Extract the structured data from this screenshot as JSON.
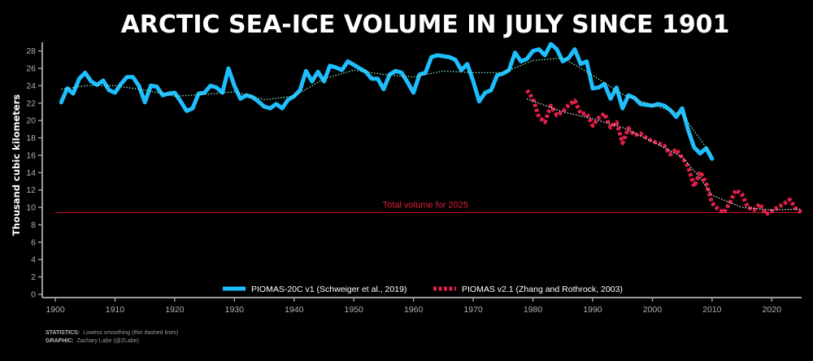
{
  "chart_data": {
    "type": "line",
    "title": "ARCTIC SEA-ICE VOLUME IN JULY SINCE 1901",
    "ylabel": "Thousand cubic kilometers",
    "xlabel": "",
    "xlim": [
      1900,
      2025
    ],
    "ylim": [
      0,
      29
    ],
    "xticks": [
      1900,
      1910,
      1920,
      1930,
      1940,
      1950,
      1960,
      1970,
      1980,
      1990,
      2000,
      2010,
      2020
    ],
    "yticks": [
      0,
      2,
      4,
      6,
      8,
      10,
      12,
      14,
      16,
      18,
      20,
      22,
      24,
      26,
      28
    ],
    "grid": false,
    "legend_position": "bottom-center",
    "reference_line": {
      "y": 9.4,
      "label": "Total volume for 2025",
      "color": "#c8102e"
    },
    "series": [
      {
        "name": "PIOMAS-20C v1 (Schweiger et al., 2019)",
        "color": "#1fbfff",
        "style": "solid",
        "x": [
          1901,
          1902,
          1903,
          1904,
          1905,
          1906,
          1907,
          1908,
          1909,
          1910,
          1911,
          1912,
          1913,
          1914,
          1915,
          1916,
          1917,
          1918,
          1919,
          1920,
          1921,
          1922,
          1923,
          1924,
          1925,
          1926,
          1927,
          1928,
          1929,
          1930,
          1931,
          1932,
          1933,
          1934,
          1935,
          1936,
          1937,
          1938,
          1939,
          1940,
          1941,
          1942,
          1943,
          1944,
          1945,
          1946,
          1947,
          1948,
          1949,
          1950,
          1951,
          1952,
          1953,
          1954,
          1955,
          1956,
          1957,
          1958,
          1959,
          1960,
          1961,
          1962,
          1963,
          1964,
          1965,
          1966,
          1967,
          1968,
          1969,
          1970,
          1971,
          1972,
          1973,
          1974,
          1975,
          1976,
          1977,
          1978,
          1979,
          1980,
          1981,
          1982,
          1983,
          1984,
          1985,
          1986,
          1987,
          1988,
          1989,
          1990,
          1991,
          1992,
          1993,
          1994,
          1995,
          1996,
          1997,
          1998,
          1999,
          2000,
          2001,
          2002,
          2003,
          2004,
          2005,
          2006,
          2007,
          2008,
          2009,
          2010
        ],
        "values": [
          22.1,
          23.7,
          23.1,
          24.8,
          25.5,
          24.5,
          24.1,
          24.6,
          23.5,
          23.2,
          24.2,
          25.0,
          25.0,
          24.0,
          22.1,
          24.0,
          23.9,
          22.9,
          23.1,
          23.2,
          22.2,
          21.1,
          21.4,
          23.1,
          23.2,
          24.0,
          23.8,
          23.2,
          26.0,
          24.0,
          22.5,
          22.9,
          22.7,
          22.2,
          21.6,
          21.4,
          21.9,
          21.4,
          22.4,
          22.8,
          23.5,
          25.7,
          24.5,
          25.6,
          24.5,
          26.3,
          26.1,
          25.8,
          26.8,
          26.4,
          26.0,
          25.6,
          24.8,
          24.8,
          23.6,
          25.3,
          25.7,
          25.5,
          24.4,
          23.2,
          25.3,
          25.5,
          27.3,
          27.5,
          27.4,
          27.3,
          27.0,
          25.8,
          26.5,
          24.5,
          22.2,
          23.2,
          23.5,
          25.2,
          25.4,
          25.8,
          27.8,
          26.8,
          27.1,
          28.0,
          28.2,
          27.5,
          28.8,
          28.2,
          26.8,
          27.2,
          28.2,
          26.5,
          26.8,
          23.7,
          23.8,
          24.2,
          22.5,
          23.8,
          21.4,
          22.9,
          22.6,
          21.9,
          21.8,
          21.7,
          21.9,
          21.7,
          21.2,
          20.4,
          21.4,
          18.9,
          16.9,
          16.2,
          16.8,
          15.6
        ]
      },
      {
        "name": "PIOMAS v2.1 (Zhang and Rothrock, 2003)",
        "color": "#e21f4a",
        "style": "dashed",
        "x": [
          1979,
          1980,
          1981,
          1982,
          1983,
          1984,
          1985,
          1986,
          1987,
          1988,
          1989,
          1990,
          1991,
          1992,
          1993,
          1994,
          1995,
          1996,
          1997,
          1998,
          1999,
          2000,
          2001,
          2002,
          2003,
          2004,
          2005,
          2006,
          2007,
          2008,
          2009,
          2010,
          2011,
          2012,
          2013,
          2014,
          2015,
          2016,
          2017,
          2018,
          2019,
          2020,
          2021,
          2022,
          2023,
          2024,
          2025
        ],
        "values": [
          23.5,
          22.5,
          20.4,
          19.8,
          21.7,
          20.6,
          21.0,
          21.8,
          22.3,
          20.8,
          20.8,
          19.4,
          20.3,
          20.8,
          19.2,
          19.8,
          17.4,
          19.1,
          18.3,
          18.5,
          18.0,
          17.6,
          17.4,
          17.1,
          16.1,
          16.7,
          15.7,
          14.7,
          12.4,
          14.1,
          12.8,
          10.5,
          9.8,
          9.4,
          10.6,
          12.0,
          11.5,
          10.0,
          9.7,
          10.4,
          9.2,
          9.6,
          10.0,
          10.4,
          10.9,
          9.9,
          9.4
        ]
      },
      {
        "name": "",
        "color": "#7fe3c2",
        "style": "dotted",
        "x": [
          1901,
          1905,
          1910,
          1915,
          1920,
          1925,
          1930,
          1935,
          1940,
          1945,
          1950,
          1955,
          1960,
          1965,
          1970,
          1975,
          1980,
          1985,
          1990,
          1995,
          2000,
          2005,
          2010
        ],
        "values": [
          23.6,
          24.0,
          24.0,
          23.5,
          22.8,
          23.0,
          23.3,
          22.4,
          22.8,
          24.8,
          25.8,
          25.3,
          25.0,
          25.7,
          25.5,
          25.5,
          26.9,
          27.2,
          25.2,
          23.0,
          21.8,
          20.7,
          16.0
        ]
      },
      {
        "name": "",
        "color": "#e6e6e6",
        "style": "dotted",
        "x": [
          1979,
          1985,
          1990,
          1995,
          2000,
          2005,
          2008,
          2010,
          2015,
          2020,
          2025
        ],
        "values": [
          22.5,
          21.0,
          20.2,
          19.2,
          17.6,
          15.8,
          13.4,
          11.4,
          10.0,
          9.7,
          9.8
        ]
      }
    ]
  },
  "footer": {
    "stats_label": "STATISTICS:",
    "stats_text": "Lowess smoothing (thin dashed lines)",
    "graphic_label": "GRAPHIC:",
    "graphic_text": "Zachary Labe (@ZLabe)"
  }
}
